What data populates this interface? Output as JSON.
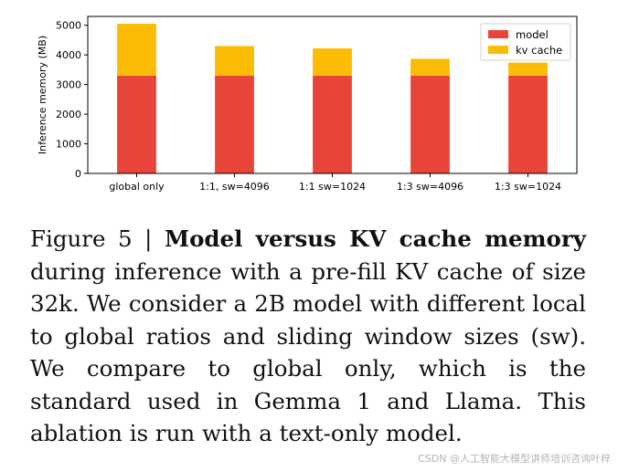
{
  "chart_data": {
    "type": "bar",
    "stacked": true,
    "categories": [
      "global only",
      "1:1, sw=4096",
      "1:1 sw=1024",
      "1:3 sw=4096",
      "1:3 sw=1024"
    ],
    "series": [
      {
        "name": "model",
        "color": "#e8453a",
        "values": [
          3300,
          3300,
          3300,
          3300,
          3300
        ]
      },
      {
        "name": "kv cache",
        "color": "#fbbc05",
        "values": [
          1750,
          1000,
          920,
          570,
          440
        ]
      }
    ],
    "ylabel": "Inference memory (MB)",
    "xlabel": "",
    "ylim": [
      0,
      5300
    ],
    "yticks": [
      0,
      1000,
      2000,
      3000,
      4000,
      5000
    ],
    "grid": false,
    "legend": "top-right"
  },
  "caption": {
    "figure_label": "Figure 5 |",
    "bold": "Model versus KV cache memory",
    "text": "during inference with a pre-fill KV cache of size 32k. We consider a 2B model with different local to global ratios and sliding window sizes (sw). We compare to global only, which is the standard used in Gemma 1 and Llama. This ablation is run with a text-only model."
  },
  "watermark": "CSDN @人工智能大模型讲师培训咨询叶梓"
}
